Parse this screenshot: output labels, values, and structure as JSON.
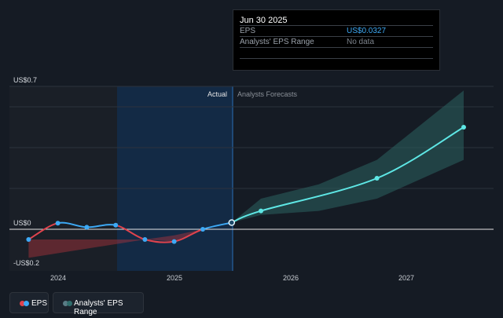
{
  "tooltip": {
    "date": "Jun 30 2025",
    "rows": [
      {
        "label": "EPS",
        "value": "US$0.0327"
      },
      {
        "label": "Analysts' EPS Range",
        "value": "No data"
      }
    ]
  },
  "legend": {
    "eps_label": "EPS",
    "range_label": "Analysts' EPS Range"
  },
  "colors": {
    "background": "#151b24",
    "eps_positive": "#3da9f5",
    "eps_negative": "#e0434d",
    "forecast": "#5ee7e5",
    "range_fill": "#2a5d5c",
    "highlight": "#133050"
  },
  "chart_data": {
    "type": "line",
    "y_axis": {
      "tick_labels": [
        "US$0.7",
        "US$0",
        "-US$0.2"
      ],
      "range": [
        -0.2,
        0.7
      ]
    },
    "x_axis": {
      "tick_labels": [
        "2024",
        "2025",
        "2026",
        "2027"
      ]
    },
    "section_labels": {
      "actual": "Actual",
      "forecast": "Analysts Forecasts"
    },
    "series": [
      {
        "name": "EPS",
        "points": [
          {
            "x": "2023-09-30",
            "y": -0.05
          },
          {
            "x": "2023-12-31",
            "y": 0.03
          },
          {
            "x": "2024-03-31",
            "y": 0.01
          },
          {
            "x": "2024-06-30",
            "y": 0.02
          },
          {
            "x": "2024-09-30",
            "y": -0.05
          },
          {
            "x": "2024-12-31",
            "y": -0.06
          },
          {
            "x": "2025-03-31",
            "y": 0.0
          },
          {
            "x": "2025-06-30",
            "y": 0.0327
          }
        ]
      },
      {
        "name": "Analysts Forecasts",
        "points": [
          {
            "x": "2025-06-30",
            "y": 0.0327
          },
          {
            "x": "2025-09-30",
            "y": 0.09
          },
          {
            "x": "2026-09-30",
            "y": 0.25
          },
          {
            "x": "2027-06-30",
            "y": 0.5
          }
        ]
      }
    ],
    "ranges": [
      {
        "name": "Analysts' EPS Range (historical)",
        "points": [
          {
            "x": "2023-09-30",
            "low": -0.14,
            "high": -0.05
          },
          {
            "x": "2024-09-30",
            "low": -0.05,
            "high": -0.05
          },
          {
            "x": "2024-12-31",
            "low": -0.06,
            "high": -0.03
          },
          {
            "x": "2025-03-31",
            "low": 0.0,
            "high": 0.0
          }
        ]
      },
      {
        "name": "Analysts' EPS Range (forecast)",
        "points": [
          {
            "x": "2025-06-30",
            "low": 0.0327,
            "high": 0.0327
          },
          {
            "x": "2025-09-30",
            "low": 0.07,
            "high": 0.15
          },
          {
            "x": "2026-03-31",
            "low": 0.09,
            "high": 0.22
          },
          {
            "x": "2026-09-30",
            "low": 0.15,
            "high": 0.34
          },
          {
            "x": "2027-06-30",
            "low": 0.34,
            "high": 0.68
          }
        ]
      }
    ]
  }
}
